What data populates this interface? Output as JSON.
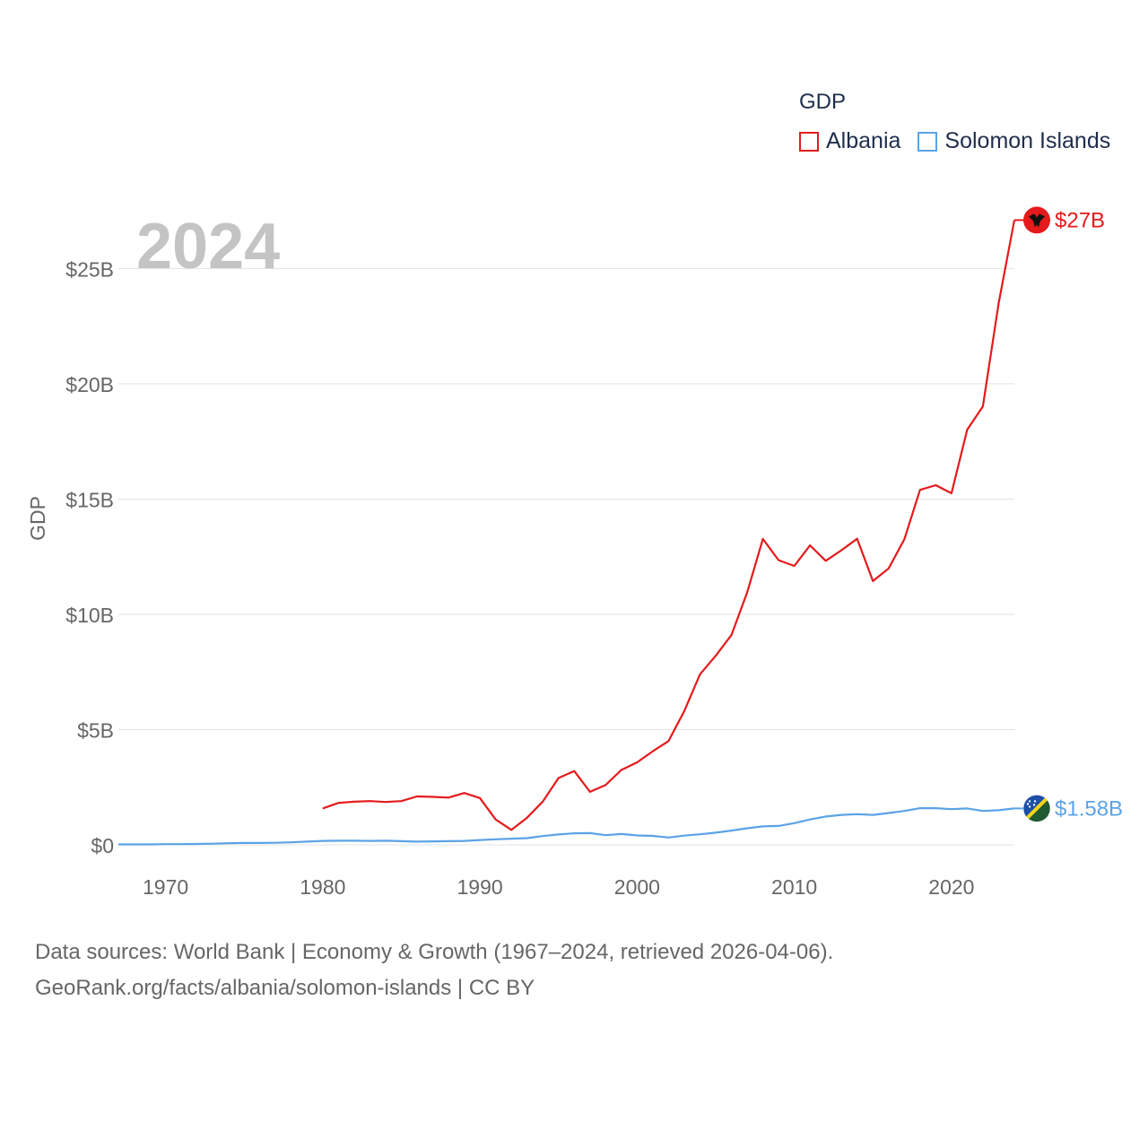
{
  "legend": {
    "title": "GDP",
    "items": [
      {
        "label": "Albania",
        "color": "#e41a1c"
      },
      {
        "label": "Solomon Islands",
        "color": "#5ba3e6"
      }
    ]
  },
  "footer": {
    "line1": "Data sources: World Bank | Economy & Growth (1967–2024, retrieved 2026-04-06).",
    "line2": "GeoRank.org/facts/albania/solomon-islands | CC BY"
  },
  "chart_data": {
    "type": "line",
    "title": "GDP",
    "year_label": "2024",
    "ylabel": "GDP",
    "xlabel": "",
    "xlim": [
      1967,
      2024
    ],
    "ylim": [
      0,
      27
    ],
    "x_ticks": [
      1970,
      1980,
      1990,
      2000,
      2010,
      2020
    ],
    "y_ticks": [
      {
        "value": 0,
        "label": "$0"
      },
      {
        "value": 5,
        "label": "$5B"
      },
      {
        "value": 10,
        "label": "$10B"
      },
      {
        "value": 15,
        "label": "$15B"
      },
      {
        "value": 20,
        "label": "$20B"
      },
      {
        "value": 25,
        "label": "$25B"
      }
    ],
    "grid": true,
    "series": [
      {
        "name": "Albania",
        "color": "#e41a1c",
        "end_label": "$27B",
        "icon": "albania-flag-icon",
        "x": [
          1980,
          1981,
          1982,
          1983,
          1984,
          1985,
          1986,
          1987,
          1988,
          1989,
          1990,
          1991,
          1992,
          1993,
          1994,
          1995,
          1996,
          1997,
          1998,
          1999,
          2000,
          2001,
          2002,
          2003,
          2004,
          2005,
          2006,
          2007,
          2008,
          2009,
          2010,
          2011,
          2012,
          2013,
          2014,
          2015,
          2016,
          2017,
          2018,
          2019,
          2020,
          2021,
          2022,
          2023,
          2024
        ],
        "values": [
          1.58,
          1.82,
          1.87,
          1.9,
          1.86,
          1.9,
          2.1,
          2.08,
          2.05,
          2.25,
          2.03,
          1.1,
          0.65,
          1.18,
          1.88,
          2.9,
          3.2,
          2.3,
          2.6,
          3.25,
          3.58,
          4.06,
          4.5,
          5.8,
          7.4,
          8.2,
          9.1,
          10.95,
          13.27,
          12.35,
          12.1,
          12.99,
          12.32,
          12.78,
          13.28,
          11.44,
          11.99,
          13.25,
          15.4,
          15.6,
          15.25,
          18.01,
          19.02,
          23.5,
          27.1
        ]
      },
      {
        "name": "Solomon Islands",
        "color": "#5ba3e6",
        "end_label": "$1.58B",
        "icon": "solomon-islands-flag-icon",
        "x": [
          1967,
          1968,
          1969,
          1970,
          1971,
          1972,
          1973,
          1974,
          1975,
          1976,
          1977,
          1978,
          1979,
          1980,
          1981,
          1982,
          1983,
          1984,
          1985,
          1986,
          1987,
          1988,
          1989,
          1990,
          1991,
          1992,
          1993,
          1994,
          1995,
          1996,
          1997,
          1998,
          1999,
          2000,
          2001,
          2002,
          2003,
          2004,
          2005,
          2006,
          2007,
          2008,
          2009,
          2010,
          2011,
          2012,
          2013,
          2014,
          2015,
          2016,
          2017,
          2018,
          2019,
          2020,
          2021,
          2022,
          2023,
          2024
        ],
        "values": [
          0.02,
          0.02,
          0.02,
          0.03,
          0.03,
          0.04,
          0.05,
          0.07,
          0.08,
          0.08,
          0.09,
          0.11,
          0.14,
          0.17,
          0.18,
          0.18,
          0.17,
          0.18,
          0.16,
          0.14,
          0.15,
          0.16,
          0.17,
          0.21,
          0.24,
          0.27,
          0.29,
          0.38,
          0.45,
          0.5,
          0.51,
          0.42,
          0.47,
          0.41,
          0.39,
          0.32,
          0.4,
          0.46,
          0.53,
          0.62,
          0.72,
          0.8,
          0.82,
          0.94,
          1.1,
          1.23,
          1.3,
          1.33,
          1.3,
          1.38,
          1.47,
          1.59,
          1.59,
          1.55,
          1.58,
          1.47,
          1.5,
          1.58
        ]
      }
    ]
  }
}
